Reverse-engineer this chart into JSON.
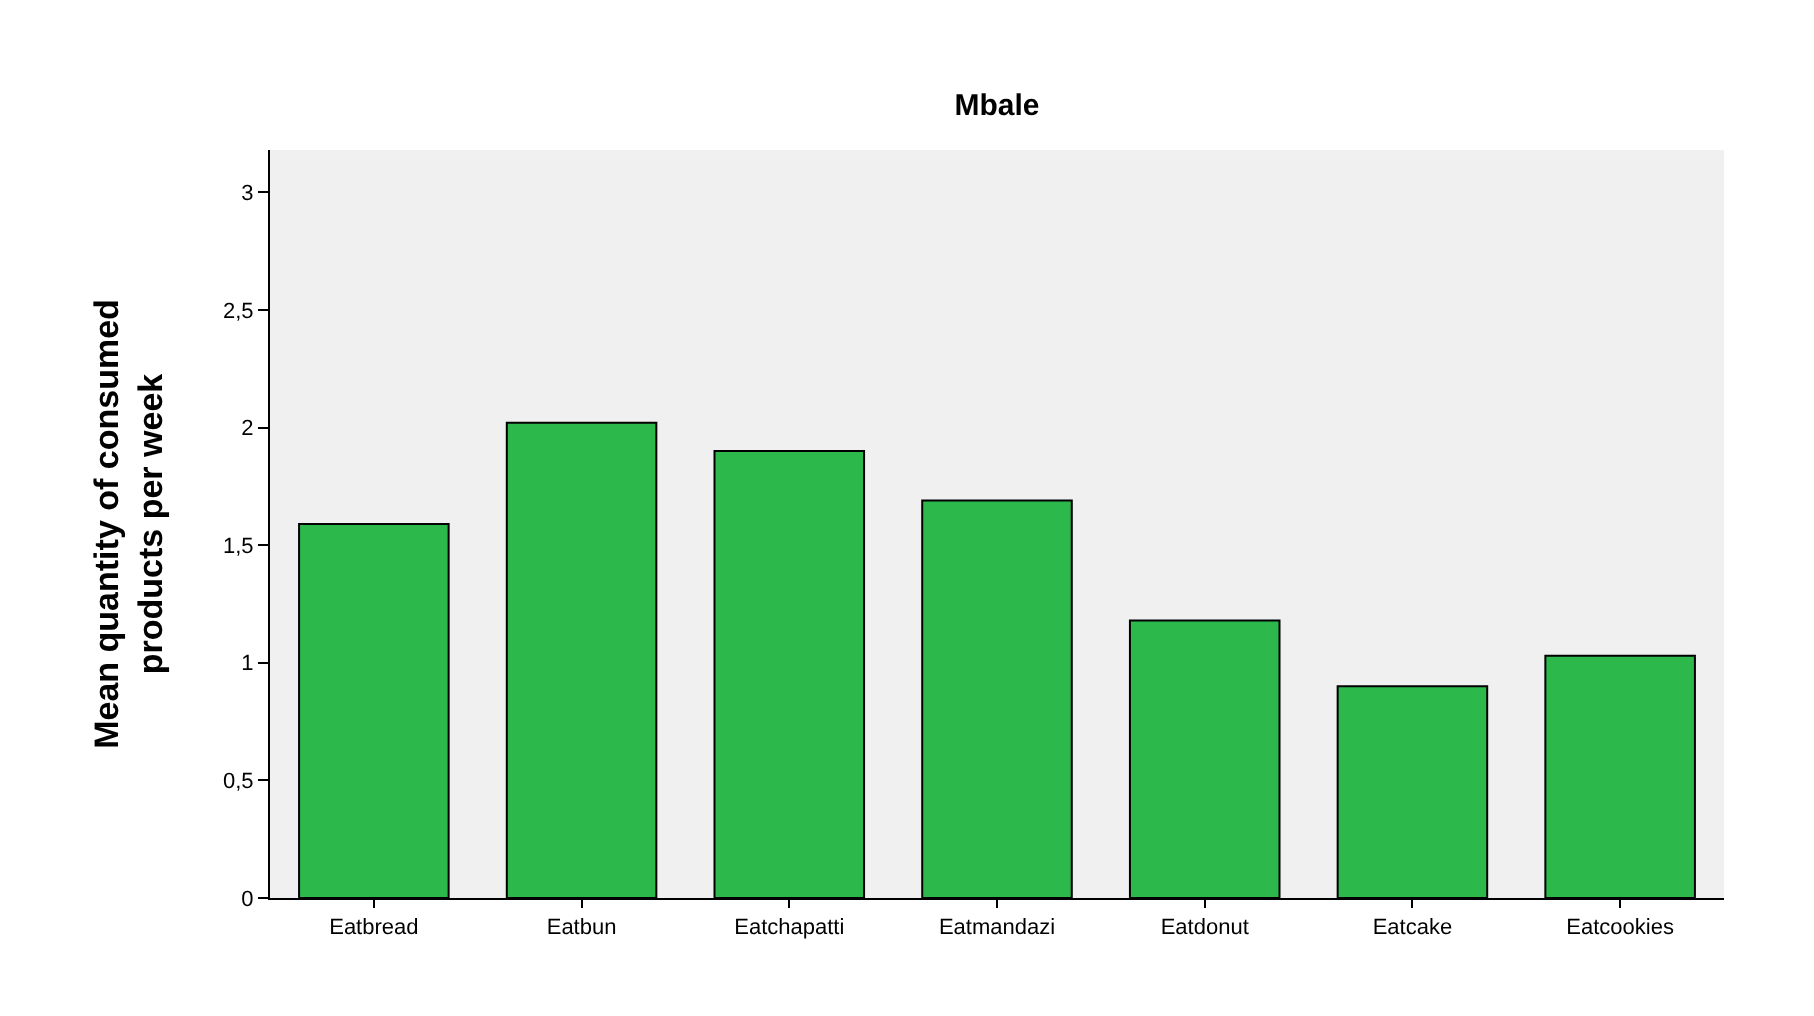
{
  "chart_data": {
    "type": "bar",
    "title": "Mbale",
    "ylabel": "Mean quantity of consumed products per week",
    "categories": [
      "Eatbread",
      "Eatbun",
      "Eatchapatti",
      "Eatmandazi",
      "Eatdonut",
      "Eatcake",
      "Eatcookies"
    ],
    "values": [
      1.59,
      2.02,
      1.9,
      1.69,
      1.18,
      0.9,
      1.03
    ],
    "color": "#2db84b",
    "ylim": [
      0,
      3.18
    ],
    "yticks": [
      0,
      {
        "value": 0.5,
        "label": "0,5"
      },
      1,
      {
        "value": 1.5,
        "label": "1,5"
      },
      2,
      {
        "value": 2.5,
        "label": "2,5"
      },
      3
    ],
    "grid": false,
    "legend": false
  }
}
